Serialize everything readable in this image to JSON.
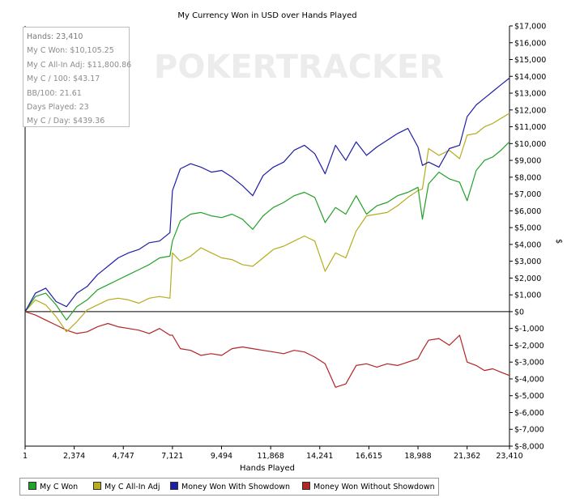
{
  "stats_box": {
    "lines": [
      "Hands: 23,410",
      "My C Won: $10,105.25",
      "My C All-In Adj: $11,800.86",
      "My C / 100: $43.17",
      "BB/100: 21.61",
      "Days Played: 23",
      "My C / Day: $439.36"
    ]
  },
  "watermark": "POKERTRACKER",
  "chart_data": {
    "type": "line",
    "title": "My Currency Won in USD over Hands Played",
    "xlabel": "Hands Played",
    "ylabel": "$",
    "xlim": [
      1,
      23410
    ],
    "ylim": [
      -8000,
      17000
    ],
    "x_ticks": [
      1,
      2374,
      4747,
      7121,
      9494,
      11868,
      14241,
      16615,
      18988,
      21362,
      23410
    ],
    "x_tick_labels": [
      "1",
      "2,374",
      "4,747",
      "7,121",
      "9,494",
      "11,868",
      "14,241",
      "16,615",
      "18,988",
      "21,362",
      "23,410"
    ],
    "y_ticks": [
      -8000,
      -7000,
      -6000,
      -5000,
      -4000,
      -3000,
      -2000,
      -1000,
      0,
      1000,
      2000,
      3000,
      4000,
      5000,
      6000,
      7000,
      8000,
      9000,
      10000,
      11000,
      12000,
      13000,
      14000,
      15000,
      16000,
      17000
    ],
    "y_tick_labels": [
      "$-8,000",
      "$-7,000",
      "$-6,000",
      "$-5,000",
      "$-4,000",
      "$-3,000",
      "$-2,000",
      "$-1,000",
      "$0",
      "$1,000",
      "$2,000",
      "$3,000",
      "$4,000",
      "$5,000",
      "$6,000",
      "$7,000",
      "$8,000",
      "$9,000",
      "$10,000",
      "$11,000",
      "$12,000",
      "$13,000",
      "$14,000",
      "$15,000",
      "$16,000",
      "$17,000"
    ],
    "grid": false,
    "legend_position": "bottom",
    "x": [
      1,
      500,
      1000,
      1500,
      2000,
      2500,
      3000,
      3500,
      4000,
      4500,
      5000,
      5500,
      6000,
      6500,
      7000,
      7121,
      7500,
      8000,
      8500,
      9000,
      9500,
      10000,
      10500,
      11000,
      11500,
      12000,
      12500,
      13000,
      13500,
      14000,
      14500,
      15000,
      15500,
      16000,
      16500,
      17000,
      17500,
      18000,
      18500,
      18988,
      19200,
      19500,
      20000,
      20500,
      21000,
      21362,
      21800,
      22200,
      22600,
      23000,
      23410
    ],
    "series": [
      {
        "name": "My C Won",
        "color": "#22a12a",
        "values": [
          0,
          900,
          1100,
          400,
          -500,
          300,
          700,
          1300,
          1600,
          1900,
          2200,
          2500,
          2800,
          3200,
          3300,
          4200,
          5400,
          5800,
          5900,
          5700,
          5600,
          5800,
          5500,
          4900,
          5700,
          6200,
          6500,
          6900,
          7100,
          6800,
          5300,
          6200,
          5800,
          6900,
          5800,
          6300,
          6500,
          6900,
          7100,
          7400,
          5500,
          7600,
          8300,
          7900,
          7700,
          6600,
          8400,
          9000,
          9200,
          9600,
          10105
        ]
      },
      {
        "name": "My C All-In Adj",
        "color": "#b5ad1e",
        "values": [
          0,
          700,
          400,
          -300,
          -1200,
          -600,
          100,
          400,
          700,
          800,
          700,
          500,
          800,
          900,
          800,
          3500,
          3000,
          3300,
          3800,
          3500,
          3200,
          3100,
          2800,
          2700,
          3200,
          3700,
          3900,
          4200,
          4500,
          4200,
          2400,
          3500,
          3200,
          4800,
          5700,
          5800,
          5900,
          6300,
          6800,
          7200,
          7300,
          9700,
          9300,
          9600,
          9100,
          10500,
          10600,
          11000,
          11200,
          11500,
          11801
        ]
      },
      {
        "name": "Money Won With Showdown",
        "color": "#1f1fa6",
        "values": [
          0,
          1100,
          1400,
          600,
          300,
          1100,
          1500,
          2200,
          2700,
          3200,
          3500,
          3700,
          4100,
          4200,
          4700,
          7200,
          8500,
          8800,
          8600,
          8300,
          8400,
          8000,
          7500,
          6900,
          8100,
          8600,
          8900,
          9600,
          9900,
          9400,
          8200,
          9900,
          9000,
          10100,
          9300,
          9800,
          10200,
          10600,
          10900,
          9800,
          8700,
          8900,
          8600,
          9700,
          9900,
          11600,
          12300,
          12700,
          13100,
          13500,
          13900
        ]
      },
      {
        "name": "Money Won Without Showdown",
        "color": "#b32424",
        "values": [
          0,
          -200,
          -500,
          -800,
          -1100,
          -1300,
          -1200,
          -900,
          -700,
          -900,
          -1000,
          -1100,
          -1300,
          -1000,
          -1400,
          -1400,
          -2200,
          -2300,
          -2600,
          -2500,
          -2600,
          -2200,
          -2100,
          -2200,
          -2300,
          -2400,
          -2500,
          -2300,
          -2400,
          -2700,
          -3100,
          -4500,
          -4300,
          -3200,
          -3100,
          -3300,
          -3100,
          -3200,
          -3000,
          -2800,
          -2300,
          -1700,
          -1600,
          -2000,
          -1400,
          -3000,
          -3200,
          -3500,
          -3400,
          -3600,
          -3800
        ]
      }
    ]
  }
}
